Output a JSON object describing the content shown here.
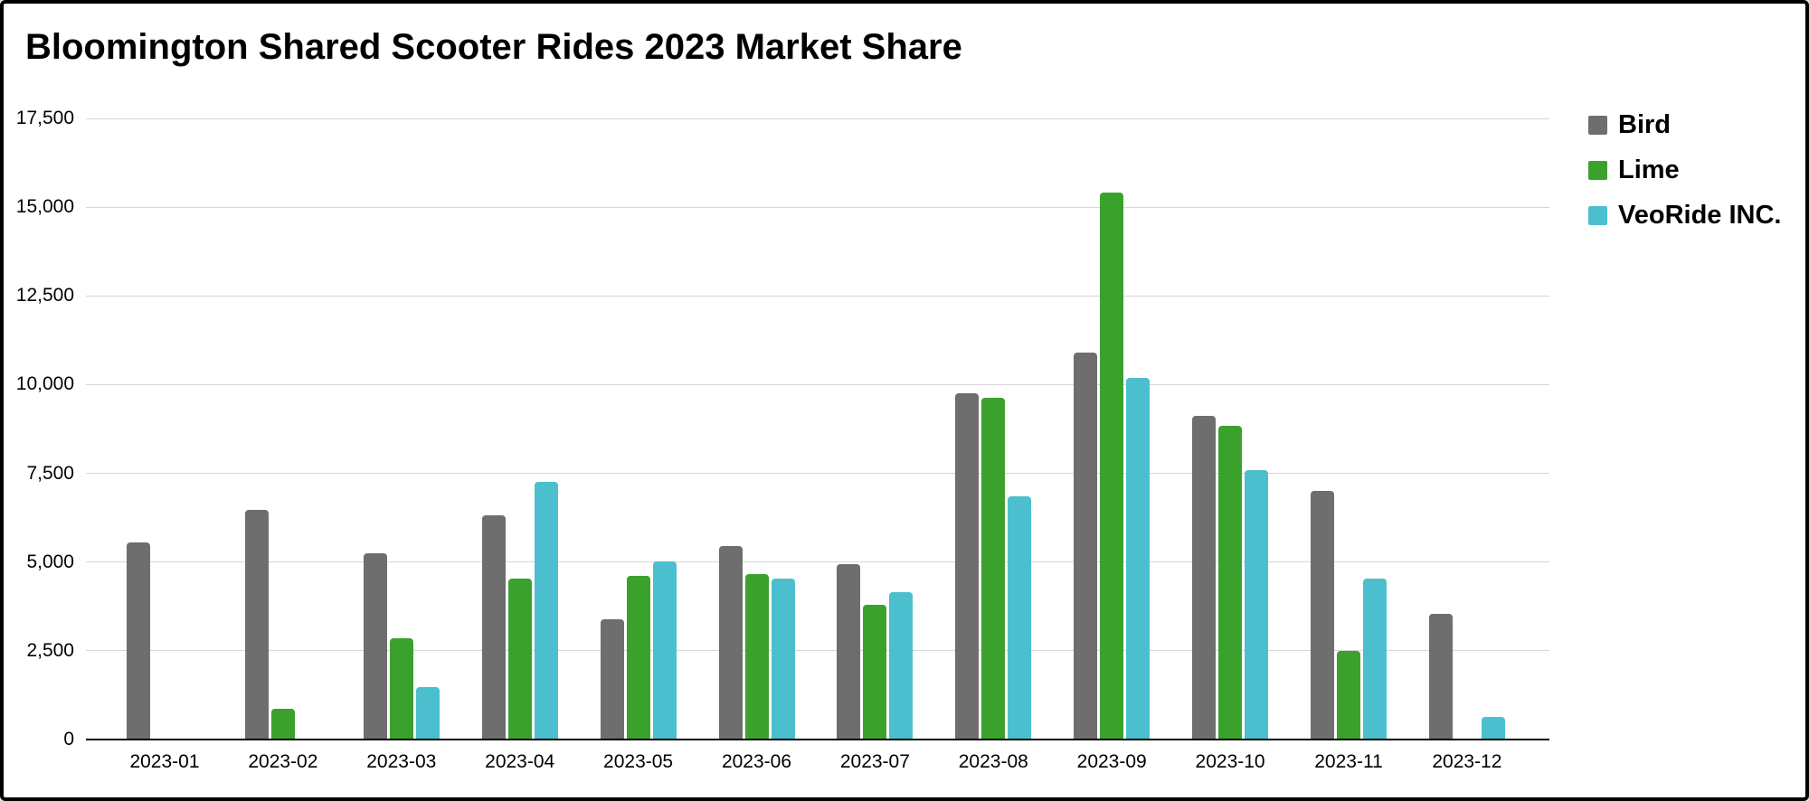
{
  "header": {
    "title": "Bloomington Shared Scooter Rides 2023 Market Share"
  },
  "chart_data": {
    "type": "bar",
    "title": "Bloomington Shared Scooter Rides 2023 Market Share",
    "xlabel": "",
    "ylabel": "",
    "categories": [
      "2023-01",
      "2023-02",
      "2023-03",
      "2023-04",
      "2023-05",
      "2023-06",
      "2023-07",
      "2023-08",
      "2023-09",
      "2023-10",
      "2023-11",
      "2023-12"
    ],
    "series": [
      {
        "name": "Bird",
        "color": "#6e6e6e",
        "values": [
          5550,
          6480,
          5250,
          6320,
          3390,
          5450,
          4940,
          9750,
          10890,
          9130,
          7000,
          3550
        ]
      },
      {
        "name": "Lime",
        "color": "#3aa22c",
        "values": [
          0,
          870,
          2850,
          4540,
          4600,
          4650,
          3800,
          9640,
          15420,
          8840,
          2500,
          0
        ]
      },
      {
        "name": "VeoRide INC.",
        "color": "#4cbfce",
        "values": [
          0,
          0,
          1480,
          7270,
          5030,
          4530,
          4140,
          6840,
          10180,
          7600,
          4530,
          630
        ]
      }
    ],
    "ylim": [
      0,
      17500
    ],
    "ytick_interval": 2500,
    "ytick_labels": [
      "0",
      "2,500",
      "5,000",
      "7,500",
      "10,000",
      "12,500",
      "15,000",
      "17,500"
    ],
    "grid": true,
    "legend_position": "right",
    "gridline_color": "#d6d6d6",
    "axis_line_color": "#000000"
  }
}
